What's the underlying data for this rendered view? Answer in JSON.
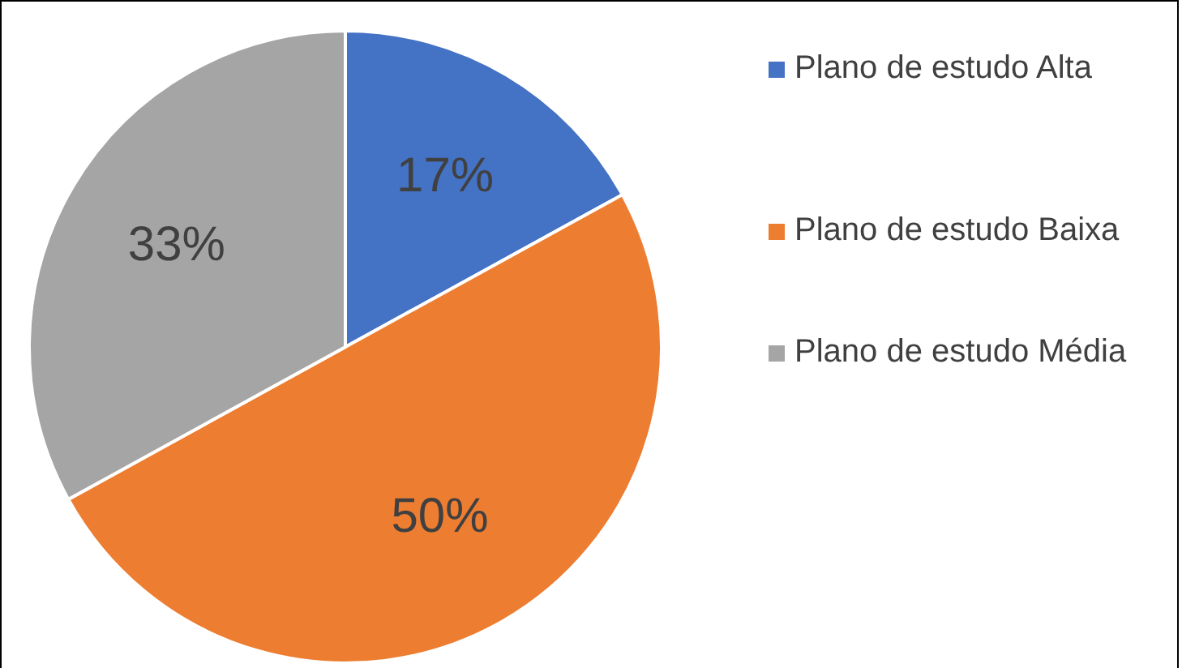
{
  "chart_data": {
    "type": "pie",
    "categories": [
      "Plano de estudo Alta",
      "Plano de estudo Baixa",
      "Plano de estudo Média"
    ],
    "values": [
      17,
      50,
      33
    ],
    "colors": [
      "#4472c4",
      "#ed7d31",
      "#a5a5a5"
    ],
    "value_labels": [
      "17%",
      "50%",
      "33%"
    ],
    "legend": "right"
  }
}
